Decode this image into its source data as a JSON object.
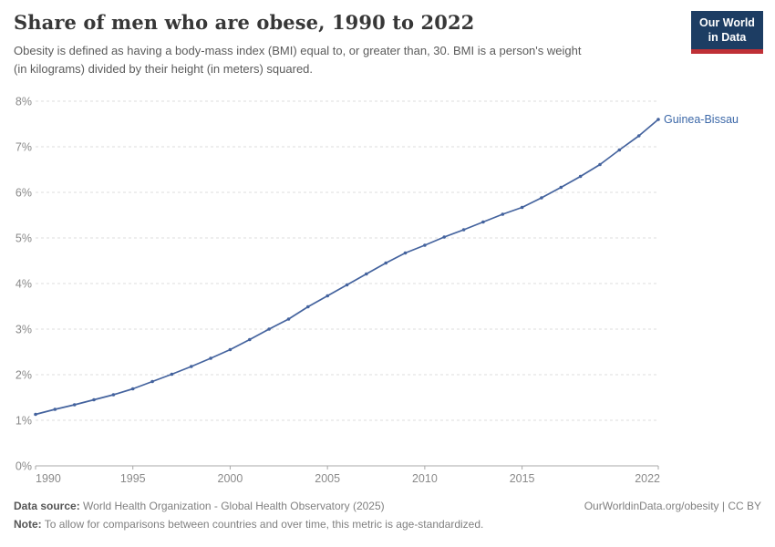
{
  "header": {
    "title": "Share of men who are obese, 1990 to 2022",
    "subtitle_lines": [
      "Obesity is defined as having a body-mass index (BMI) equal to, or greater than, 30. BMI is a person's weight",
      "(in kilograms) divided by their height (in meters) squared."
    ],
    "logo": {
      "line1": "Our World",
      "line2": "in Data",
      "bg_color": "#1d3d63",
      "stripe_color": "#bf3036"
    }
  },
  "chart_data": {
    "type": "line",
    "title": "Share of men who are obese, 1990 to 2022",
    "entity": "Guinea-Bissau",
    "unit": "%",
    "x": [
      1990,
      1991,
      1992,
      1993,
      1994,
      1995,
      1996,
      1997,
      1998,
      1999,
      2000,
      2001,
      2002,
      2003,
      2004,
      2005,
      2006,
      2007,
      2008,
      2009,
      2010,
      2011,
      2012,
      2013,
      2014,
      2015,
      2016,
      2017,
      2018,
      2019,
      2020,
      2021,
      2022
    ],
    "values": [
      1.13,
      1.24,
      1.34,
      1.45,
      1.56,
      1.69,
      1.85,
      2.01,
      2.18,
      2.36,
      2.55,
      2.77,
      3.0,
      3.22,
      3.49,
      3.73,
      3.97,
      4.21,
      4.45,
      4.67,
      4.84,
      5.02,
      5.18,
      5.35,
      5.52,
      5.67,
      5.88,
      6.11,
      6.35,
      6.61,
      6.93,
      7.24,
      7.6
    ],
    "xlabel": "",
    "ylabel": "",
    "ylim": [
      0,
      8
    ],
    "y_ticks": [
      0,
      1,
      2,
      3,
      4,
      5,
      6,
      7,
      8
    ],
    "x_ticks": [
      1990,
      1995,
      2000,
      2005,
      2010,
      2015,
      2022
    ],
    "grid": true,
    "legend_position": "end-of-line",
    "line_color": "#44639e",
    "entity_label_color": "#3c68a8",
    "grid_color": "#dcdcdc",
    "axis_color": "#a8a8a8",
    "tick_label_color": "#8a8a8a"
  },
  "footer": {
    "data_source_label": "Data source:",
    "data_source": "World Health Organization - Global Health Observatory (2025)",
    "note_label": "Note:",
    "note": "To allow for comparisons between countries and over time, this metric is age-standardized.",
    "link": "OurWorldinData.org/obesity | CC BY"
  }
}
